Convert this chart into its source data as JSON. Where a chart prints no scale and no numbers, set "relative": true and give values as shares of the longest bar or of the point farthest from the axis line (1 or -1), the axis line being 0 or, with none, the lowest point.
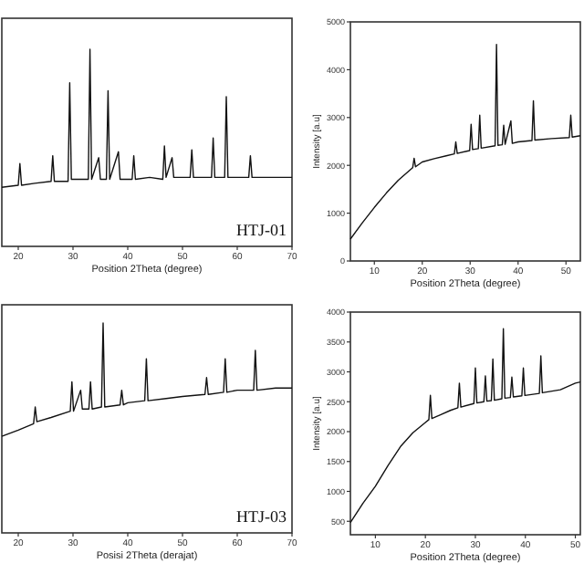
{
  "chart_data": [
    {
      "type": "line",
      "xlabel": "Position 2Theta (degree)",
      "annotations": [
        "HTJ-01"
      ],
      "relative": true,
      "xlim": [
        17,
        70
      ],
      "xticks": [
        20,
        30,
        40,
        50,
        60,
        70
      ],
      "color": "#111111",
      "x": [
        17,
        20,
        20.3,
        20.6,
        23,
        26,
        26.3,
        26.6,
        29.1,
        29.4,
        29.7,
        32.8,
        33.1,
        33.4,
        34.7,
        35.0,
        36.1,
        36.4,
        36.7,
        38.3,
        38.6,
        40.8,
        41.1,
        41.4,
        44,
        46.4,
        46.7,
        47,
        48.1,
        48.4,
        51.4,
        51.7,
        52,
        55.3,
        55.6,
        55.9,
        57.7,
        58.0,
        58.3,
        62.1,
        62.4,
        62.7,
        66,
        70
      ],
      "values": [
        0.3,
        0.31,
        0.42,
        0.31,
        0.32,
        0.33,
        0.46,
        0.33,
        0.33,
        0.83,
        0.34,
        0.34,
        1.0,
        0.34,
        0.45,
        0.34,
        0.34,
        0.79,
        0.34,
        0.48,
        0.34,
        0.34,
        0.46,
        0.34,
        0.35,
        0.34,
        0.51,
        0.35,
        0.45,
        0.35,
        0.35,
        0.49,
        0.35,
        0.35,
        0.55,
        0.35,
        0.35,
        0.76,
        0.35,
        0.35,
        0.46,
        0.35,
        0.35,
        0.35
      ]
    },
    {
      "type": "line",
      "xlabel": "Position 2Theta (degree)",
      "ylabel": "Intensity [a.u]",
      "xlim": [
        5,
        53
      ],
      "xticks": [
        10,
        20,
        30,
        40,
        50
      ],
      "ylim": [
        0,
        5000
      ],
      "yticks": [
        0,
        1000,
        2000,
        3000,
        4000,
        5000
      ],
      "color": "#111111",
      "x": [
        5,
        7.5,
        10,
        12.5,
        15,
        18,
        18.3,
        18.6,
        20,
        22.5,
        25,
        26.7,
        27,
        27.3,
        29.9,
        30.2,
        30.5,
        31.7,
        32,
        32.3,
        35.2,
        35.5,
        35.8,
        36.7,
        37,
        37.3,
        38.5,
        38.8,
        40,
        42.9,
        43.2,
        43.5,
        47,
        50.7,
        51,
        51.3,
        53
      ],
      "values": [
        458,
        800,
        1120,
        1420,
        1690,
        1950,
        2150,
        1970,
        2070,
        2140,
        2200,
        2240,
        2490,
        2250,
        2310,
        2860,
        2330,
        2350,
        3050,
        2360,
        2410,
        4530,
        2420,
        2430,
        2840,
        2440,
        2930,
        2460,
        2490,
        2520,
        3350,
        2530,
        2560,
        2580,
        3050,
        2590,
        2620
      ]
    },
    {
      "type": "line",
      "xlabel": "Posisi 2Theta (derajat)",
      "annotations": [
        "HTJ-03"
      ],
      "relative": true,
      "xlim": [
        17,
        70
      ],
      "xticks": [
        20,
        30,
        40,
        50,
        60,
        70
      ],
      "color": "#111111",
      "x": [
        17,
        20,
        22.8,
        23.1,
        23.4,
        26,
        29.5,
        29.8,
        30.1,
        31.4,
        31.7,
        32.9,
        33.2,
        33.5,
        35.2,
        35.5,
        35.8,
        38.6,
        38.9,
        39.2,
        40,
        43.1,
        43.4,
        43.7,
        47,
        50,
        54.1,
        54.4,
        54.7,
        57.5,
        57.8,
        58.1,
        60,
        63,
        63.3,
        63.6,
        67,
        70
      ],
      "values": [
        0.46,
        0.49,
        0.52,
        0.6,
        0.53,
        0.55,
        0.58,
        0.72,
        0.58,
        0.68,
        0.59,
        0.59,
        0.72,
        0.59,
        0.6,
        1.0,
        0.6,
        0.61,
        0.68,
        0.61,
        0.62,
        0.63,
        0.83,
        0.63,
        0.64,
        0.65,
        0.66,
        0.74,
        0.66,
        0.67,
        0.83,
        0.67,
        0.68,
        0.68,
        0.87,
        0.68,
        0.69,
        0.69
      ]
    },
    {
      "type": "line",
      "xlabel": "Position 2Theta (degree)",
      "ylabel": "Intensity [a.u]",
      "xlim": [
        5,
        51
      ],
      "xticks": [
        10,
        20,
        30,
        40,
        50
      ],
      "ylim": [
        275,
        4000
      ],
      "yticks": [
        500,
        1000,
        1500,
        2000,
        2500,
        3000,
        3500,
        4000
      ],
      "color": "#111111",
      "x": [
        5,
        7.5,
        10,
        12.5,
        15,
        17.5,
        20,
        20.7,
        21,
        21.3,
        23,
        25,
        26.5,
        26.8,
        27.1,
        29.7,
        30,
        30.3,
        31.7,
        32,
        32.3,
        33.2,
        33.5,
        33.8,
        35.3,
        35.6,
        35.9,
        37,
        37.3,
        37.6,
        39.3,
        39.6,
        39.9,
        42.8,
        43.1,
        43.4,
        47,
        50,
        51
      ],
      "values": [
        478,
        800,
        1086,
        1430,
        1747,
        1980,
        2152,
        2200,
        2608,
        2220,
        2280,
        2355,
        2400,
        2811,
        2410,
        2470,
        3065,
        2480,
        2500,
        2933,
        2510,
        2520,
        3216,
        2525,
        2550,
        3724,
        2560,
        2570,
        2913,
        2580,
        2600,
        3065,
        2605,
        2640,
        3268,
        2650,
        2700,
        2811,
        2830
      ]
    }
  ]
}
